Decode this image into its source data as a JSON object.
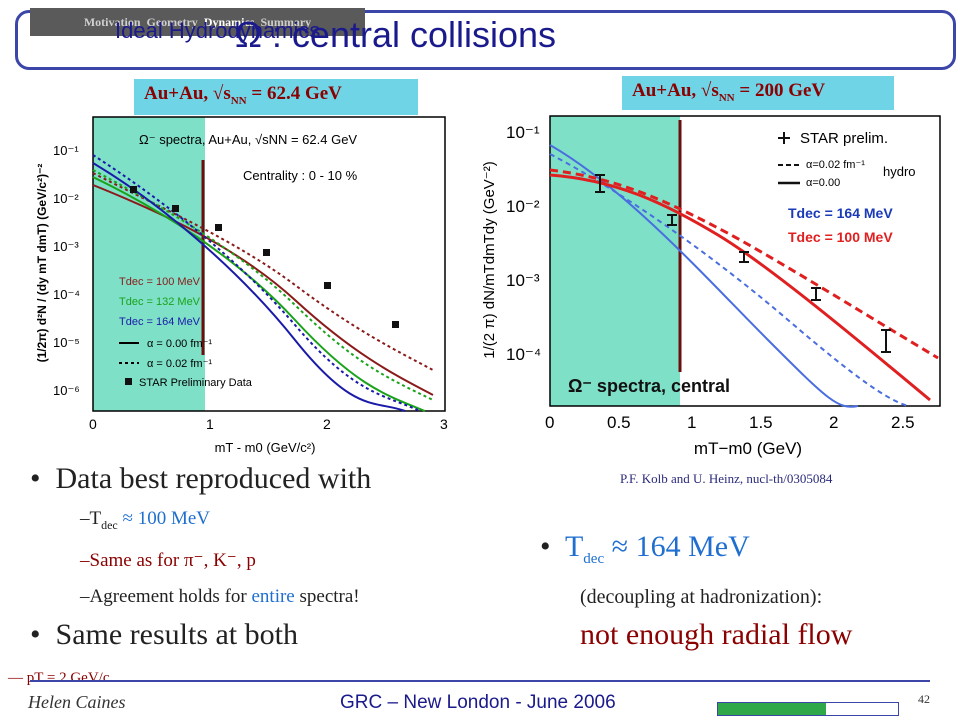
{
  "nav": {
    "items": [
      "Motivation",
      "Geometry",
      "Dynamics",
      "Summary"
    ],
    "active": "Dynamics"
  },
  "title": "Ω : central collisions",
  "overlay_text": "Ideal Hydrodynamics",
  "energy_left": {
    "system": "Au+Au,",
    "label": "= 62.4 GeV"
  },
  "energy_right": {
    "system": "Au+Au,",
    "label": "= 200 GeV"
  },
  "left_plot": {
    "legend_title": "Ω⁻ spectra, Au+Au, √sNN = 62.4 GeV",
    "centrality": "Centrality : 0 - 10 %",
    "ylabel": "(1/2π) d²N / (dy mT dmT) (GeV/c²)⁻²",
    "xlabel": "mT - m0 (GeV/c²)",
    "xticks": [
      "0",
      "1",
      "2",
      "3"
    ],
    "yticks": [
      "10⁻¹",
      "10⁻²",
      "10⁻³",
      "10⁻⁴",
      "10⁻⁵",
      "10⁻⁶"
    ],
    "legend": [
      "Tdec = 100 MeV",
      "Tdec = 132 MeV",
      "Tdec = 164 MeV",
      "α = 0.00 fm⁻¹",
      "α = 0.02 fm⁻¹",
      "STAR Preliminary Data"
    ],
    "colors": {
      "t100": "#8b1a1a",
      "t132": "#1aa31a",
      "t164": "#1a1aa8",
      "shade": "#7fe0c8"
    }
  },
  "right_plot": {
    "ylabel": "1/(2 π) dN/mTdmTdy (GeV⁻²)",
    "xlabel": "mT−m0 (GeV)",
    "xticks": [
      "0",
      "0.5",
      "1",
      "1.5",
      "2",
      "2.5"
    ],
    "yticks": [
      "10⁻¹",
      "10⁻²",
      "10⁻³",
      "10⁻⁴"
    ],
    "legend": [
      "STAR prelim.",
      "α=0.02 fm⁻¹",
      "α=0.00",
      "hydro"
    ],
    "tdec_164": "Tdec = 164 MeV",
    "tdec_100": "Tdec = 100 MeV",
    "label": "Ω⁻ spectra, central",
    "colors": {
      "t164": "#4a6ee0",
      "t100": "#e02020",
      "shade": "#7fe0c8"
    }
  },
  "citation": "P.F. Kolb and U. Heinz, nucl-th/0305084",
  "bullets": {
    "main": "Data best reproduced with",
    "main_highlight": "best",
    "sub1_prefix": "–T",
    "sub1_sub": "dec",
    "sub1_value": " ≈ 100 MeV",
    "sub2": "–Same as for π⁻, K⁻, p",
    "sub3_prefix": "–Agreement holds for ",
    "sub3_highlight": "entire",
    "sub3_suffix": " spectra!",
    "main2": "Same results at both"
  },
  "right_bullet": {
    "prefix": "T",
    "sub": "dec",
    "value": " ≈ 164 MeV",
    "paren": "(decoupling at hadronization):",
    "conclusion": "not enough radial flow"
  },
  "stray": "— pT = 2 GeV/c",
  "footer": {
    "author": "Helen Caines",
    "conference": "GRC – New London - June 2006",
    "page": "42",
    "progress": 0.6
  }
}
